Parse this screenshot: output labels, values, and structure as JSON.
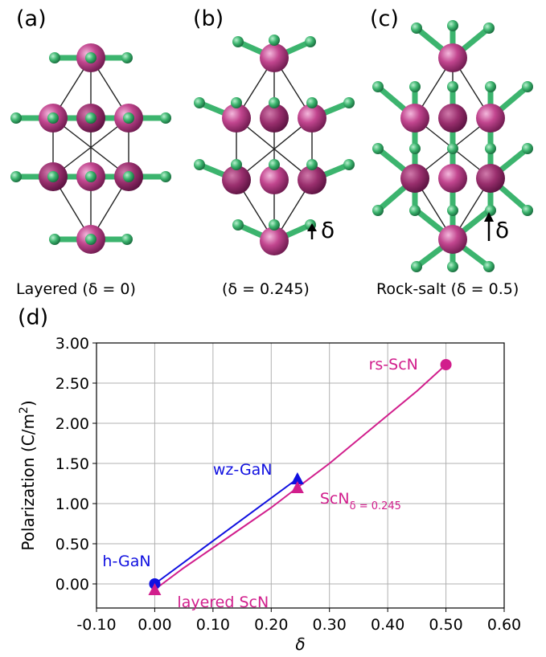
{
  "panels": {
    "a": {
      "letter": "(a)",
      "caption": "Layered (δ = 0)"
    },
    "b": {
      "letter": "(b)",
      "caption": "(δ = 0.245)",
      "delta": "δ"
    },
    "c": {
      "letter": "(c)",
      "caption": "Rock-salt (δ = 0.5)",
      "delta": "δ"
    },
    "d": {
      "letter": "(d)"
    }
  },
  "colors": {
    "gan": "#1010e0",
    "scn": "#d11e8c",
    "sc_atom": "#c2468f",
    "n_atom": "#3cb46e",
    "grid": "#b0b0b0"
  },
  "chart_data": {
    "type": "line",
    "xlabel": "δ",
    "ylabel": "Polarization (C/m²)",
    "xlim": [
      -0.1,
      0.6
    ],
    "ylim": [
      -0.3,
      3.0
    ],
    "xticks": [
      "-0.10",
      "0.00",
      "0.10",
      "0.20",
      "0.30",
      "0.40",
      "0.50",
      "0.60"
    ],
    "yticks": [
      "0.00",
      "0.50",
      "1.00",
      "1.50",
      "2.00",
      "2.50",
      "3.00"
    ],
    "grid": true,
    "series": [
      {
        "name": "GaN",
        "x": [
          0.0,
          0.245
        ],
        "y": [
          0.0,
          1.31
        ]
      },
      {
        "name": "ScN",
        "x": [
          0.0,
          0.05,
          0.1,
          0.15,
          0.2,
          0.245,
          0.3,
          0.35,
          0.4,
          0.45,
          0.5
        ],
        "y": [
          -0.07,
          0.2,
          0.45,
          0.7,
          0.95,
          1.2,
          1.5,
          1.8,
          2.1,
          2.4,
          2.73
        ]
      }
    ],
    "points": [
      {
        "label": "h-GaN",
        "x": 0.0,
        "y": 0.0,
        "marker": "circle",
        "series": "GaN"
      },
      {
        "label": "wz-GaN",
        "x": 0.245,
        "y": 1.31,
        "marker": "triangle",
        "series": "GaN"
      },
      {
        "label": "layered ScN",
        "x": 0.0,
        "y": -0.07,
        "marker": "triangle",
        "series": "ScN"
      },
      {
        "label": "ScN",
        "sub": "δ = 0.245",
        "x": 0.245,
        "y": 1.2,
        "marker": "triangle",
        "series": "ScN"
      },
      {
        "label": "rs-ScN",
        "x": 0.5,
        "y": 2.73,
        "marker": "circle",
        "series": "ScN"
      }
    ]
  }
}
